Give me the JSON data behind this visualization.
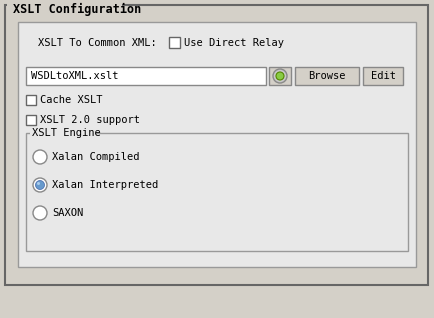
{
  "title": "XSLT Configuration",
  "bg_color": "#d4d0c8",
  "inner_bg": "#e8e8e8",
  "white": "#ffffff",
  "btn_color": "#d4d0c8",
  "border_dark": "#666666",
  "border_mid": "#999999",
  "border_light": "#cccccc",
  "title_fontsize": 8.5,
  "label_fontsize": 7.5,
  "row1_label": "XSLT To Common XML:",
  "checkbox1_label": "Use Direct Relay",
  "textfield_value": "WSDLtoXML.xslt",
  "btn_browse": "Browse",
  "btn_edit": "Edit",
  "checkbox2_label": "Cache XSLT",
  "checkbox3_label": "XSLT 2.0 support",
  "group_label": "XSLT Engine",
  "radio_options": [
    "Xalan Compiled",
    "Xalan Interpreted",
    "SAXON"
  ],
  "radio_selected": 1
}
